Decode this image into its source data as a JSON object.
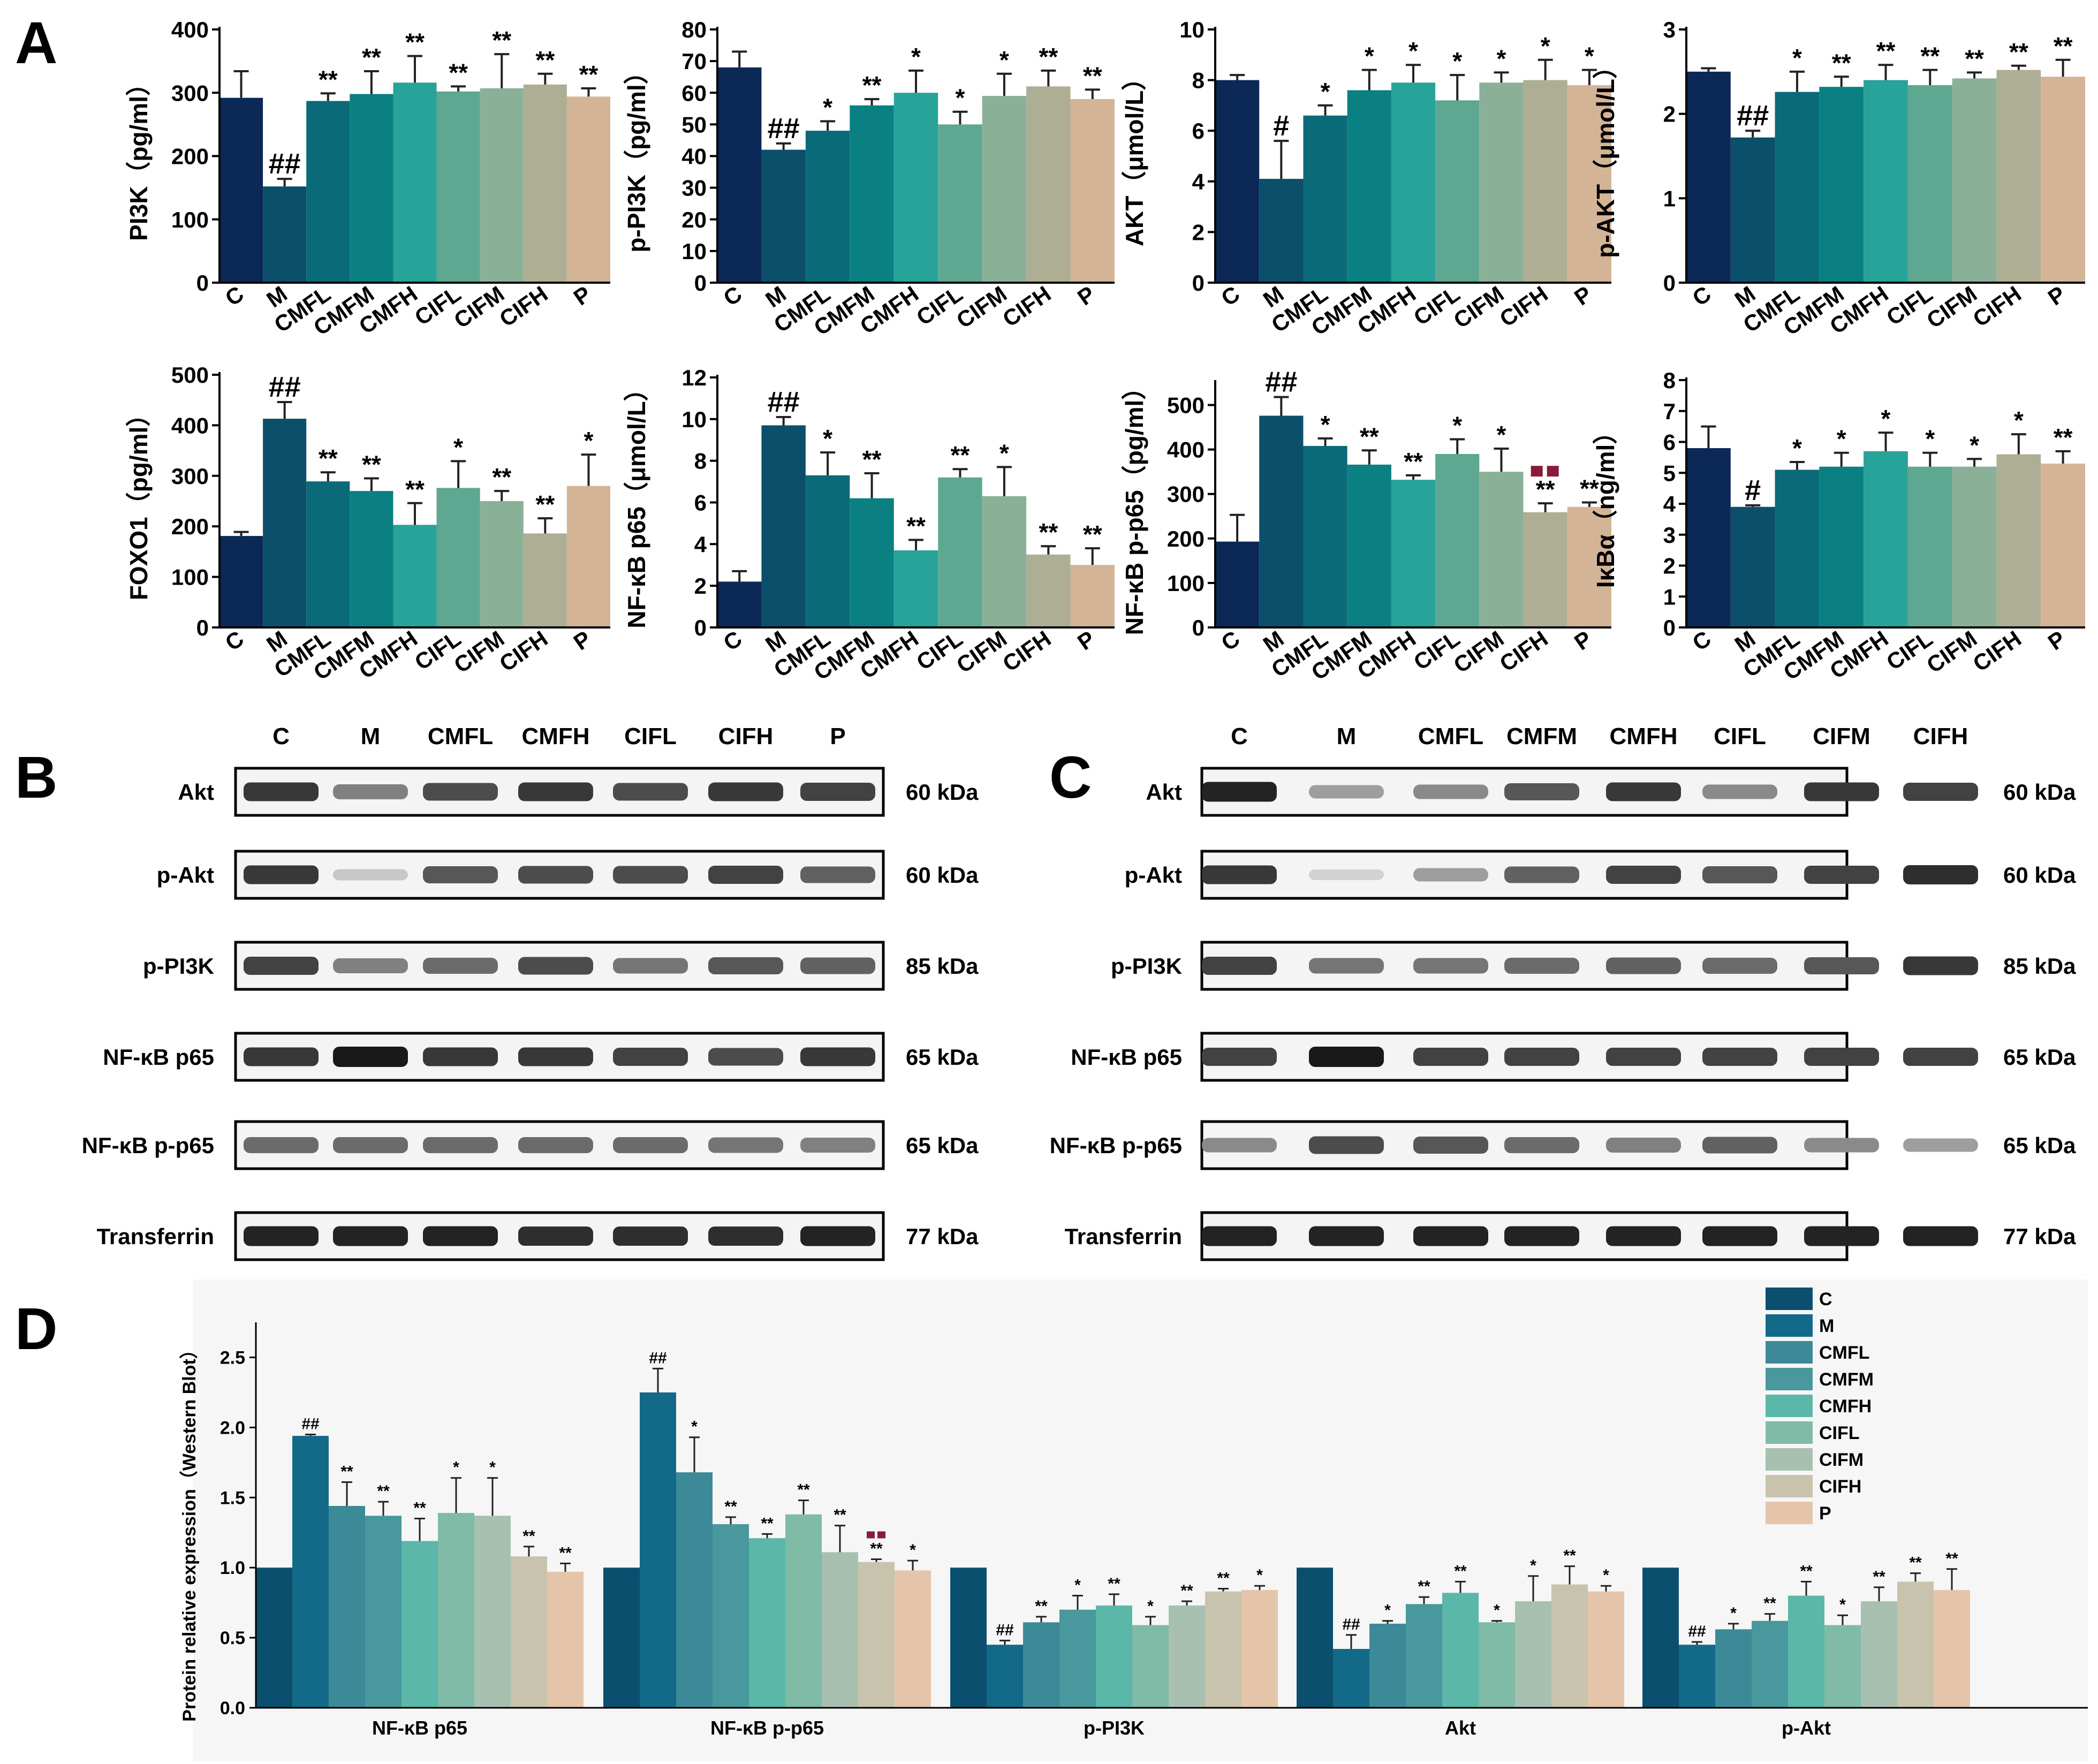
{
  "palette": {
    "C": "#0c2856",
    "M": "#0b4f6a",
    "CMFL": "#0a6a78",
    "CMFM": "#0a8082",
    "CMFH": "#27a39a",
    "CIFL": "#5ea791",
    "CIFM": "#8bb098",
    "CIFH": "#aeae94",
    "P": "#d4b497"
  },
  "palette_d": {
    "C": "#0b4f6f",
    "M": "#136a88",
    "CMFL": "#3c8a98",
    "CMFM": "#48989d",
    "CMFH": "#5bb7a8",
    "CIFL": "#7fbba7",
    "CIFM": "#a8c0b0",
    "CIFH": "#c8c3ad",
    "P": "#e5c5aa"
  },
  "star_color": "#000000",
  "square_marker_color": "#8b1a3a",
  "panel_labels": {
    "A": "A",
    "B": "B",
    "C": "C",
    "D": "D"
  },
  "chart_data": [
    {
      "id": "pi3k",
      "type": "bar",
      "ylabel": "PI3K（pg/ml）",
      "ylim": [
        0,
        400
      ],
      "yticks": [
        0,
        100,
        200,
        300,
        400
      ],
      "categories": [
        "C",
        "M",
        "CMFL",
        "CMFM",
        "CMFH",
        "CIFL",
        "CIFM",
        "CIFH",
        "P"
      ],
      "values": [
        292,
        152,
        287,
        298,
        316,
        302,
        307,
        313,
        294
      ],
      "errors": [
        42,
        12,
        12,
        36,
        42,
        8,
        54,
        17,
        13
      ],
      "annotations": [
        "",
        "##",
        "**",
        "**",
        "**",
        "**",
        "**",
        "**",
        "**"
      ]
    },
    {
      "id": "ppi3k",
      "type": "bar",
      "ylabel": "p-PI3K（pg/ml）",
      "ylim": [
        0,
        80
      ],
      "yticks": [
        0,
        10,
        20,
        30,
        40,
        50,
        60,
        70,
        80
      ],
      "categories": [
        "C",
        "M",
        "CMFL",
        "CMFM",
        "CMFH",
        "CIFL",
        "CIFM",
        "CIFH",
        "P"
      ],
      "values": [
        68,
        42,
        48,
        56,
        60,
        50,
        59,
        62,
        58
      ],
      "errors": [
        5,
        2,
        3,
        2,
        7,
        4,
        7,
        5,
        3
      ],
      "annotations": [
        "",
        "##",
        "*",
        "**",
        "*",
        "*",
        "*",
        "**",
        "**"
      ]
    },
    {
      "id": "akt",
      "type": "bar",
      "ylabel": "AKT（μmol/L）",
      "ylim": [
        0,
        10
      ],
      "yticks": [
        0,
        2,
        4,
        6,
        8,
        10
      ],
      "categories": [
        "C",
        "M",
        "CMFL",
        "CMFM",
        "CMFH",
        "CIFL",
        "CIFM",
        "CIFH",
        "P"
      ],
      "values": [
        8.0,
        4.1,
        6.6,
        7.6,
        7.9,
        7.2,
        7.9,
        8.0,
        7.8
      ],
      "errors": [
        0.2,
        1.5,
        0.4,
        0.8,
        0.7,
        1.0,
        0.4,
        0.8,
        0.6
      ],
      "annotations": [
        "",
        "#",
        "*",
        "*",
        "*",
        "*",
        "*",
        "*",
        "*"
      ]
    },
    {
      "id": "pakt",
      "type": "bar",
      "ylabel": "p-AKT（μmol/L）",
      "ylim": [
        0,
        3
      ],
      "yticks": [
        0,
        1,
        2,
        3
      ],
      "categories": [
        "C",
        "M",
        "CMFL",
        "CMFM",
        "CMFH",
        "CIFL",
        "CIFM",
        "CIFH",
        "P"
      ],
      "values": [
        2.5,
        1.72,
        2.26,
        2.32,
        2.4,
        2.34,
        2.42,
        2.52,
        2.44
      ],
      "errors": [
        0.04,
        0.08,
        0.24,
        0.12,
        0.18,
        0.18,
        0.07,
        0.05,
        0.2
      ],
      "annotations": [
        "",
        "##",
        "*",
        "**",
        "**",
        "**",
        "**",
        "**",
        "**"
      ]
    },
    {
      "id": "foxo1",
      "type": "bar",
      "ylabel": "FOXO1（pg/ml）",
      "ylim": [
        0,
        500
      ],
      "yticks": [
        0,
        100,
        200,
        300,
        400,
        500
      ],
      "categories": [
        "C",
        "M",
        "CMFL",
        "CMFM",
        "CMFH",
        "CIFL",
        "CIFM",
        "CIFH",
        "P"
      ],
      "values": [
        181,
        413,
        289,
        270,
        203,
        276,
        250,
        186,
        280
      ],
      "errors": [
        8,
        33,
        18,
        25,
        43,
        53,
        20,
        30,
        62
      ],
      "annotations": [
        "",
        "##",
        "**",
        "**",
        "**",
        "*",
        "**",
        "**",
        "*"
      ]
    },
    {
      "id": "nfkb",
      "type": "bar",
      "ylabel": "NF-κB p65（μmol/L）",
      "ylim": [
        0,
        12
      ],
      "yticks": [
        0,
        2,
        4,
        6,
        8,
        10,
        12
      ],
      "categories": [
        "C",
        "M",
        "CMFL",
        "CMFM",
        "CMFH",
        "CIFL",
        "CIFM",
        "CIFH",
        "P"
      ],
      "values": [
        2.2,
        9.7,
        7.3,
        6.2,
        3.7,
        7.2,
        6.3,
        3.5,
        3.0
      ],
      "errors": [
        0.5,
        0.4,
        1.1,
        1.2,
        0.5,
        0.4,
        1.4,
        0.4,
        0.8
      ],
      "annotations": [
        "",
        "##",
        "*",
        "**",
        "**",
        "**",
        "*",
        "**",
        "**"
      ]
    },
    {
      "id": "nfkbp",
      "type": "bar",
      "ylabel": "NF-κB p-p65（pg/ml）",
      "ylim": [
        0,
        550
      ],
      "yticks": [
        0,
        100,
        200,
        300,
        400,
        500
      ],
      "categories": [
        "C",
        "M",
        "CMFL",
        "CMFM",
        "CMFH",
        "CIFL",
        "CIFM",
        "CIFH",
        "P"
      ],
      "values": [
        193,
        476,
        408,
        366,
        332,
        390,
        350,
        259,
        271
      ],
      "errors": [
        60,
        42,
        17,
        32,
        10,
        33,
        52,
        20,
        10
      ],
      "annotations": [
        "",
        "##",
        "*",
        "**",
        "**",
        "*",
        "*",
        "**",
        "**"
      ],
      "square_marker": [
        false,
        false,
        false,
        false,
        false,
        false,
        false,
        true,
        false
      ]
    },
    {
      "id": "ikba",
      "type": "bar",
      "ylabel": "IκBα（ng/ml）",
      "ylim": [
        0,
        8
      ],
      "yticks": [
        0,
        1,
        2,
        3,
        4,
        5,
        6,
        7,
        8
      ],
      "categories": [
        "C",
        "M",
        "CMFL",
        "CMFM",
        "CMFH",
        "CIFL",
        "CIFM",
        "CIFH",
        "P"
      ],
      "values": [
        5.8,
        3.9,
        5.1,
        5.2,
        5.7,
        5.2,
        5.2,
        5.6,
        5.3
      ],
      "errors": [
        0.7,
        0.05,
        0.25,
        0.45,
        0.6,
        0.45,
        0.25,
        0.65,
        0.4
      ],
      "annotations": [
        "",
        "#",
        "*",
        "*",
        "*",
        "*",
        "*",
        "*",
        "**"
      ]
    },
    {
      "id": "western",
      "type": "bar",
      "ylabel": "Protein relative expression（Western Blot）",
      "ylim": [
        0,
        2.75
      ],
      "yticks": [
        0.0,
        0.5,
        1.0,
        1.5,
        2.0,
        2.5
      ],
      "legend_position": "top-right",
      "categories": [
        "NF-κB p65",
        "NF-κB p-p65",
        "p-PI3K",
        "Akt",
        "p-Akt"
      ],
      "series_names": [
        "C",
        "M",
        "CMFL",
        "CMFM",
        "CMFH",
        "CIFL",
        "CIFM",
        "CIFH",
        "P"
      ],
      "values": [
        [
          1.0,
          1.94,
          1.44,
          1.37,
          1.19,
          1.39,
          1.37,
          1.08,
          0.97
        ],
        [
          1.0,
          2.25,
          1.68,
          1.31,
          1.21,
          1.38,
          1.11,
          1.04,
          0.98
        ],
        [
          1.0,
          0.45,
          0.61,
          0.7,
          0.73,
          0.59,
          0.73,
          0.83,
          0.84
        ],
        [
          1.0,
          0.42,
          0.6,
          0.74,
          0.82,
          0.61,
          0.76,
          0.88,
          0.83
        ],
        [
          1.0,
          0.45,
          0.56,
          0.62,
          0.8,
          0.59,
          0.76,
          0.9,
          0.84
        ]
      ],
      "errors": [
        [
          0,
          0.01,
          0.17,
          0.1,
          0.16,
          0.25,
          0.27,
          0.07,
          0.06
        ],
        [
          0,
          0.17,
          0.25,
          0.05,
          0.03,
          0.1,
          0.19,
          0.02,
          0.07
        ],
        [
          0,
          0.03,
          0.04,
          0.1,
          0.08,
          0.06,
          0.03,
          0.02,
          0.03
        ],
        [
          0,
          0.1,
          0.02,
          0.05,
          0.08,
          0.01,
          0.18,
          0.13,
          0.04
        ],
        [
          0,
          0.02,
          0.04,
          0.05,
          0.1,
          0.07,
          0.1,
          0.06,
          0.15
        ]
      ],
      "annotations": [
        [
          "",
          "##",
          "**",
          "**",
          "**",
          "*",
          "*",
          "**",
          "**"
        ],
        [
          "",
          "##",
          "*",
          "**",
          "**",
          "**",
          "**",
          "**",
          "*"
        ],
        [
          "",
          "##",
          "**",
          "*",
          "**",
          "*",
          "**",
          "**",
          "*"
        ],
        [
          "",
          "##",
          "*",
          "**",
          "**",
          "*",
          "*",
          "**",
          "*"
        ],
        [
          "",
          "##",
          "*",
          "**",
          "**",
          "*",
          "**",
          "**",
          "**"
        ]
      ],
      "square_marker": [
        [],
        [
          false,
          false,
          false,
          false,
          false,
          false,
          false,
          true,
          false
        ],
        [],
        [],
        []
      ]
    }
  ],
  "western_blots": [
    {
      "id": "B",
      "lanes": [
        "C",
        "M",
        "CMFL",
        "CMFH",
        "CIFL",
        "CIFH",
        "P"
      ],
      "rows": [
        {
          "label": "Akt",
          "kda": "60 kDa",
          "intensity": [
            0.85,
            0.5,
            0.75,
            0.85,
            0.75,
            0.85,
            0.8
          ]
        },
        {
          "label": "p-Akt",
          "kda": "60 kDa",
          "intensity": [
            0.85,
            0.15,
            0.7,
            0.75,
            0.75,
            0.8,
            0.65
          ]
        },
        {
          "label": "p-PI3K",
          "kda": "85 kDa",
          "intensity": [
            0.8,
            0.5,
            0.6,
            0.75,
            0.55,
            0.7,
            0.65
          ]
        },
        {
          "label": "NF-κB p65",
          "kda": "65 kDa",
          "intensity": [
            0.85,
            1.0,
            0.85,
            0.85,
            0.8,
            0.75,
            0.85
          ]
        },
        {
          "label": "NF-κB  p-p65",
          "kda": "65 kDa",
          "intensity": [
            0.6,
            0.6,
            0.6,
            0.6,
            0.6,
            0.55,
            0.5
          ]
        },
        {
          "label": "Transferrin",
          "kda": "77 kDa",
          "intensity": [
            0.95,
            0.95,
            0.95,
            0.9,
            0.9,
            0.9,
            0.95
          ]
        }
      ]
    },
    {
      "id": "C",
      "lanes": [
        "C",
        "M",
        "CMFL",
        "CMFM",
        "CMFH",
        "CIFL",
        "CIFM",
        "CIFH"
      ],
      "rows": [
        {
          "label": "Akt",
          "kda": "60 kDa",
          "intensity": [
            0.95,
            0.35,
            0.45,
            0.7,
            0.85,
            0.45,
            0.85,
            0.8
          ]
        },
        {
          "label": "p-Akt",
          "kda": "60 kDa",
          "intensity": [
            0.85,
            0.1,
            0.35,
            0.65,
            0.8,
            0.7,
            0.8,
            0.9
          ]
        },
        {
          "label": "p-PI3K",
          "kda": "85 kDa",
          "intensity": [
            0.8,
            0.55,
            0.55,
            0.6,
            0.65,
            0.6,
            0.7,
            0.85
          ]
        },
        {
          "label": "NF-κB p65",
          "kda": "65 kDa",
          "intensity": [
            0.8,
            1.0,
            0.8,
            0.8,
            0.8,
            0.8,
            0.8,
            0.8
          ]
        },
        {
          "label": "NF-κB  p-p65",
          "kda": "65 kDa",
          "intensity": [
            0.45,
            0.75,
            0.7,
            0.6,
            0.5,
            0.65,
            0.45,
            0.35
          ]
        },
        {
          "label": "Transferrin",
          "kda": "77 kDa",
          "intensity": [
            0.95,
            0.95,
            0.95,
            0.95,
            0.95,
            0.95,
            0.95,
            0.95
          ]
        }
      ]
    }
  ]
}
